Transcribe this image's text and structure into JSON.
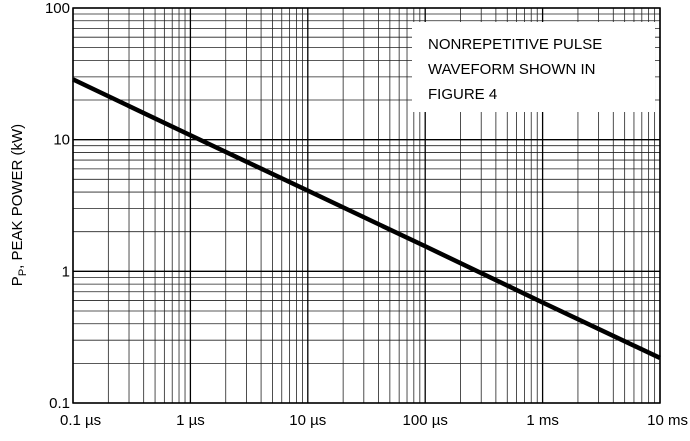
{
  "chart_data": {
    "type": "line",
    "ylabel": {
      "main": "P",
      "sub": "P",
      "rest": ", PEAK POWER (kW)"
    },
    "annotation": [
      "NONREPETITIVE PULSE",
      "WAVEFORM SHOWN IN",
      "FIGURE 4"
    ],
    "x": [
      0.1,
      1,
      10,
      100,
      1000,
      10000
    ],
    "series": [
      {
        "color": "#000000",
        "values": [
          28.7,
          10.8,
          4.1,
          1.55,
          0.58,
          0.22
        ]
      }
    ],
    "xlog": true,
    "ylog": true,
    "grid": true,
    "minor_grid": true,
    "xlim": [
      0.1,
      10000
    ],
    "xticks": [
      {
        "value": 0.1,
        "label": "0.1 µs"
      },
      {
        "value": 1,
        "label": "1 µs"
      },
      {
        "value": 10,
        "label": "10 µs"
      },
      {
        "value": 100,
        "label": "100 µs"
      },
      {
        "value": 1000,
        "label": "1 ms"
      },
      {
        "value": 10000,
        "label": "10 ms"
      }
    ],
    "ylim": [
      0.1,
      100
    ],
    "yticks": [
      0.1,
      1,
      10,
      100
    ]
  }
}
